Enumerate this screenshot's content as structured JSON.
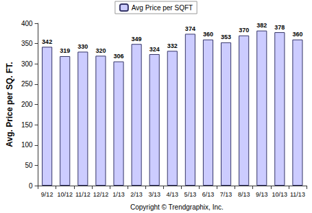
{
  "chart_data": {
    "type": "bar",
    "ylabel": "Avg. Price per SQ. FT.",
    "annotations": [
      "Copyright © Trendgraphix, Inc."
    ],
    "categories": [
      "9/12",
      "10/12",
      "11/12",
      "12/12",
      "1/13",
      "2/13",
      "3/13",
      "4/13",
      "5/13",
      "6/13",
      "7/13",
      "8/13",
      "9/13",
      "10/13",
      "11/13"
    ],
    "series": [
      {
        "name": "Avg Price per SQFT",
        "color": "#ccccff",
        "values": [
          342,
          319,
          330,
          320,
          306,
          349,
          324,
          332,
          374,
          360,
          353,
          370,
          382,
          378,
          360
        ]
      }
    ],
    "ylim": [
      0,
      400
    ],
    "yticks": [
      0,
      50,
      100,
      150,
      200,
      250,
      300,
      350,
      400
    ],
    "grid": false,
    "legend": "top",
    "data_labels": true
  }
}
